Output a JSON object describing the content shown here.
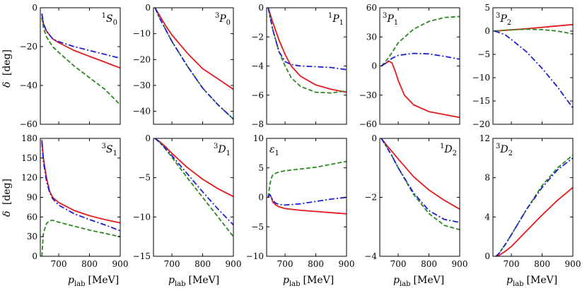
{
  "figure": {
    "xlabel_var": "p",
    "xlabel_sub": "lab",
    "xlabel_unit": "[MeV]",
    "ylabel_var": "δ",
    "ylabel_unit": "[deg]"
  },
  "colors": {
    "red": "#e41a1c",
    "green": "#2a8a1f",
    "blue": "#1f1fd6"
  },
  "chart_data": [
    {
      "type": "line",
      "label_sup": "1",
      "label_main": "S",
      "label_sub": "0",
      "label_pos": "top-right",
      "xlim": [
        640,
        900
      ],
      "ylim": [
        -60,
        0
      ],
      "xticks": [
        700,
        800,
        900
      ],
      "yticks": [
        0,
        -20,
        -40,
        -60
      ],
      "series": [
        {
          "name": "red",
          "style": "solid",
          "x": [
            645,
            650,
            660,
            680,
            700,
            750,
            800,
            850,
            900
          ],
          "y": [
            -3,
            -8,
            -12,
            -16,
            -18,
            -22,
            -25,
            -28,
            -31
          ]
        },
        {
          "name": "green",
          "style": "dashed",
          "x": [
            645,
            650,
            660,
            680,
            700,
            750,
            800,
            850,
            900
          ],
          "y": [
            -5,
            -10,
            -15,
            -20,
            -23,
            -30,
            -36,
            -42,
            -50
          ]
        },
        {
          "name": "blue",
          "style": "dashdot",
          "x": [
            645,
            650,
            660,
            680,
            700,
            750,
            800,
            850,
            900
          ],
          "y": [
            -3,
            -8,
            -12,
            -16,
            -17.5,
            -20,
            -22,
            -24,
            -26
          ]
        }
      ]
    },
    {
      "type": "line",
      "label_sup": "3",
      "label_main": "P",
      "label_sub": "0",
      "label_pos": "top-right",
      "xlim": [
        640,
        900
      ],
      "ylim": [
        -45,
        0
      ],
      "xticks": [
        700,
        800,
        900
      ],
      "yticks": [
        0,
        -10,
        -20,
        -30,
        -40
      ],
      "series": [
        {
          "name": "red",
          "style": "solid",
          "x": [
            645,
            660,
            680,
            700,
            750,
            800,
            850,
            900
          ],
          "y": [
            0,
            -3,
            -7,
            -10.5,
            -17.5,
            -23.5,
            -27.5,
            -31.5
          ]
        },
        {
          "name": "green",
          "style": "dashed",
          "x": [
            645,
            660,
            680,
            700,
            750,
            800,
            850,
            900
          ],
          "y": [
            0,
            -4,
            -8.5,
            -13,
            -22.5,
            -31,
            -37.5,
            -43
          ]
        },
        {
          "name": "blue",
          "style": "dashdot",
          "x": [
            645,
            660,
            680,
            700,
            750,
            800,
            850,
            900
          ],
          "y": [
            0,
            -4,
            -8.5,
            -13,
            -22.5,
            -31,
            -37.5,
            -43
          ]
        }
      ]
    },
    {
      "type": "line",
      "label_sup": "1",
      "label_main": "P",
      "label_sub": "1",
      "label_pos": "top-right",
      "xlim": [
        640,
        900
      ],
      "ylim": [
        -8,
        0
      ],
      "xticks": [
        700,
        800,
        900
      ],
      "yticks": [
        0,
        -2,
        -4,
        -6,
        -8
      ],
      "series": [
        {
          "name": "red",
          "style": "solid",
          "x": [
            645,
            660,
            680,
            700,
            720,
            750,
            800,
            850,
            900
          ],
          "y": [
            0,
            -1,
            -2.2,
            -3.2,
            -4,
            -4.7,
            -5.3,
            -5.6,
            -5.8
          ]
        },
        {
          "name": "green",
          "style": "dashed",
          "x": [
            645,
            660,
            680,
            700,
            720,
            750,
            800,
            850,
            900
          ],
          "y": [
            0,
            -1.5,
            -3,
            -4,
            -4.8,
            -5.4,
            -5.8,
            -5.85,
            -5.7
          ]
        },
        {
          "name": "blue",
          "style": "dashdot",
          "x": [
            645,
            660,
            680,
            700,
            720,
            750,
            800,
            850,
            900
          ],
          "y": [
            0,
            -1.5,
            -3,
            -3.7,
            -3.9,
            -4,
            -4.05,
            -4.1,
            -4.25
          ]
        }
      ]
    },
    {
      "type": "line",
      "label_sup": "3",
      "label_main": "P",
      "label_sub": "1",
      "label_pos": "top-left",
      "xlim": [
        640,
        900
      ],
      "ylim": [
        -60,
        60
      ],
      "xticks": [
        700,
        800,
        900
      ],
      "yticks": [
        60,
        30,
        0,
        -30,
        -60
      ],
      "series": [
        {
          "name": "red",
          "style": "solid",
          "x": [
            645,
            660,
            670,
            680,
            690,
            700,
            720,
            750,
            800,
            850,
            900
          ],
          "y": [
            0,
            3,
            5,
            3,
            -5,
            -15,
            -30,
            -40,
            -47,
            -50,
            -53
          ]
        },
        {
          "name": "green",
          "style": "dashed",
          "x": [
            645,
            660,
            680,
            700,
            750,
            800,
            850,
            900
          ],
          "y": [
            0,
            5,
            14,
            24,
            38,
            46,
            50,
            51
          ]
        },
        {
          "name": "blue",
          "style": "dashdot",
          "x": [
            645,
            660,
            680,
            700,
            750,
            800,
            850,
            900
          ],
          "y": [
            0,
            3,
            8,
            11,
            13,
            12.5,
            10,
            7
          ]
        }
      ]
    },
    {
      "type": "line",
      "label_sup": "3",
      "label_main": "P",
      "label_sub": "2",
      "label_pos": "top-left",
      "xlim": [
        640,
        900
      ],
      "ylim": [
        -20,
        5
      ],
      "xticks": [
        700,
        800,
        900
      ],
      "yticks": [
        5,
        0,
        -5,
        -10,
        -15,
        -20
      ],
      "series": [
        {
          "name": "red",
          "style": "solid",
          "x": [
            645,
            700,
            750,
            800,
            850,
            900
          ],
          "y": [
            0,
            0.25,
            0.5,
            0.8,
            1.1,
            1.4
          ]
        },
        {
          "name": "green",
          "style": "dashed",
          "x": [
            645,
            700,
            750,
            800,
            850,
            900
          ],
          "y": [
            0,
            0.3,
            0.4,
            0.3,
            0,
            -0.6
          ]
        },
        {
          "name": "blue",
          "style": "dashdot",
          "x": [
            645,
            660,
            680,
            700,
            750,
            800,
            850,
            900
          ],
          "y": [
            0,
            -0.3,
            -0.8,
            -1.8,
            -4.5,
            -8,
            -12,
            -16.5
          ]
        }
      ]
    },
    {
      "type": "line",
      "label_sup": "3",
      "label_main": "S",
      "label_sub": "1",
      "label_pos": "top-right",
      "xlim": [
        640,
        900
      ],
      "ylim": [
        0,
        180
      ],
      "xticks": [
        700,
        800,
        900
      ],
      "yticks": [
        180,
        150,
        120,
        90,
        60,
        30,
        0
      ],
      "series": [
        {
          "name": "red",
          "style": "solid",
          "x": [
            645,
            650,
            660,
            670,
            680,
            700,
            750,
            800,
            850,
            900
          ],
          "y": [
            178,
            150,
            120,
            100,
            90,
            82,
            70,
            62,
            56,
            51
          ]
        },
        {
          "name": "green",
          "style": "dashed",
          "x": [
            645,
            650,
            660,
            670,
            680,
            700,
            750,
            800,
            850,
            900
          ],
          "y": [
            0,
            35,
            50,
            54,
            55,
            52,
            46,
            40,
            35,
            30
          ]
        },
        {
          "name": "blue",
          "style": "dashdot",
          "x": [
            645,
            650,
            660,
            670,
            680,
            700,
            750,
            800,
            850,
            900
          ],
          "y": [
            175,
            145,
            115,
            98,
            88,
            78,
            65,
            56,
            48,
            39
          ]
        }
      ]
    },
    {
      "type": "line",
      "label_sup": "3",
      "label_main": "D",
      "label_sub": "1",
      "label_pos": "top-right",
      "xlim": [
        640,
        900
      ],
      "ylim": [
        -15,
        0
      ],
      "xticks": [
        700,
        800,
        900
      ],
      "yticks": [
        0,
        -5,
        -10,
        -15
      ],
      "series": [
        {
          "name": "red",
          "style": "solid",
          "x": [
            645,
            660,
            680,
            700,
            750,
            800,
            850,
            900
          ],
          "y": [
            0,
            -0.4,
            -1.1,
            -1.9,
            -3.7,
            -5.2,
            -6.4,
            -7.4
          ]
        },
        {
          "name": "green",
          "style": "dashed",
          "x": [
            645,
            660,
            680,
            700,
            750,
            800,
            850,
            900
          ],
          "y": [
            0,
            -0.5,
            -1.4,
            -2.4,
            -5,
            -7.5,
            -10,
            -12.5
          ]
        },
        {
          "name": "blue",
          "style": "dashdot",
          "x": [
            645,
            660,
            680,
            700,
            750,
            800,
            850,
            900
          ],
          "y": [
            0,
            -0.5,
            -1.3,
            -2.2,
            -4.5,
            -6.8,
            -9,
            -11
          ]
        }
      ]
    },
    {
      "type": "line",
      "label_sup": "",
      "label_main": "ε",
      "label_sub": "1",
      "label_pos": "top-left",
      "xlim": [
        640,
        900
      ],
      "ylim": [
        -10,
        10
      ],
      "xticks": [
        700,
        800,
        900
      ],
      "yticks": [
        10,
        5,
        0,
        -5,
        -10
      ],
      "series": [
        {
          "name": "red",
          "style": "solid",
          "x": [
            645,
            650,
            655,
            660,
            670,
            680,
            700,
            750,
            800,
            850,
            900
          ],
          "y": [
            0,
            0.5,
            0,
            -0.8,
            -1.3,
            -1.6,
            -1.9,
            -2.2,
            -2.4,
            -2.6,
            -2.8
          ]
        },
        {
          "name": "green",
          "style": "dashed",
          "x": [
            645,
            650,
            655,
            660,
            670,
            680,
            700,
            750,
            800,
            850,
            900
          ],
          "y": [
            0,
            2,
            3.2,
            3.8,
            4.1,
            4.3,
            4.5,
            4.8,
            5.1,
            5.6,
            6.1
          ]
        },
        {
          "name": "blue",
          "style": "dashdot",
          "x": [
            645,
            650,
            655,
            660,
            670,
            680,
            700,
            750,
            800,
            850,
            900
          ],
          "y": [
            0,
            0.5,
            0.1,
            -0.5,
            -1,
            -1.2,
            -1.3,
            -1.1,
            -0.7,
            -0.3,
            0
          ]
        }
      ]
    },
    {
      "type": "line",
      "label_sup": "1",
      "label_main": "D",
      "label_sub": "2",
      "label_pos": "top-right",
      "xlim": [
        640,
        900
      ],
      "ylim": [
        -4,
        0
      ],
      "xticks": [
        700,
        800,
        900
      ],
      "yticks": [
        0,
        -2,
        -4
      ],
      "series": [
        {
          "name": "red",
          "style": "solid",
          "x": [
            645,
            660,
            680,
            700,
            750,
            800,
            850,
            900
          ],
          "y": [
            0,
            -0.2,
            -0.45,
            -0.7,
            -1.3,
            -1.75,
            -2.1,
            -2.4
          ]
        },
        {
          "name": "green",
          "style": "dashed",
          "x": [
            645,
            660,
            680,
            700,
            750,
            800,
            850,
            900
          ],
          "y": [
            0,
            -0.25,
            -0.6,
            -1,
            -1.9,
            -2.55,
            -2.95,
            -3.1
          ]
        },
        {
          "name": "blue",
          "style": "dashdot",
          "x": [
            645,
            660,
            680,
            700,
            750,
            800,
            850,
            900
          ],
          "y": [
            0,
            -0.25,
            -0.6,
            -1,
            -1.85,
            -2.45,
            -2.75,
            -2.85
          ]
        }
      ]
    },
    {
      "type": "line",
      "label_sup": "3",
      "label_main": "D",
      "label_sub": "2",
      "label_pos": "top-left",
      "xlim": [
        640,
        900
      ],
      "ylim": [
        0,
        12
      ],
      "xticks": [
        700,
        800,
        900
      ],
      "yticks": [
        12,
        8,
        4,
        0
      ],
      "series": [
        {
          "name": "red",
          "style": "solid",
          "x": [
            650,
            660,
            680,
            700,
            750,
            800,
            850,
            900
          ],
          "y": [
            0,
            0.1,
            0.5,
            1,
            2.6,
            4.2,
            5.7,
            7
          ]
        },
        {
          "name": "green",
          "style": "dashed",
          "x": [
            650,
            660,
            680,
            700,
            750,
            800,
            850,
            900
          ],
          "y": [
            0,
            0.3,
            1.2,
            2.2,
            4.8,
            7.2,
            9,
            10.3
          ]
        },
        {
          "name": "blue",
          "style": "dashdot",
          "x": [
            650,
            660,
            680,
            700,
            750,
            800,
            850,
            900
          ],
          "y": [
            0,
            0.3,
            1.2,
            2.2,
            4.8,
            7,
            8.8,
            10
          ]
        }
      ]
    }
  ]
}
